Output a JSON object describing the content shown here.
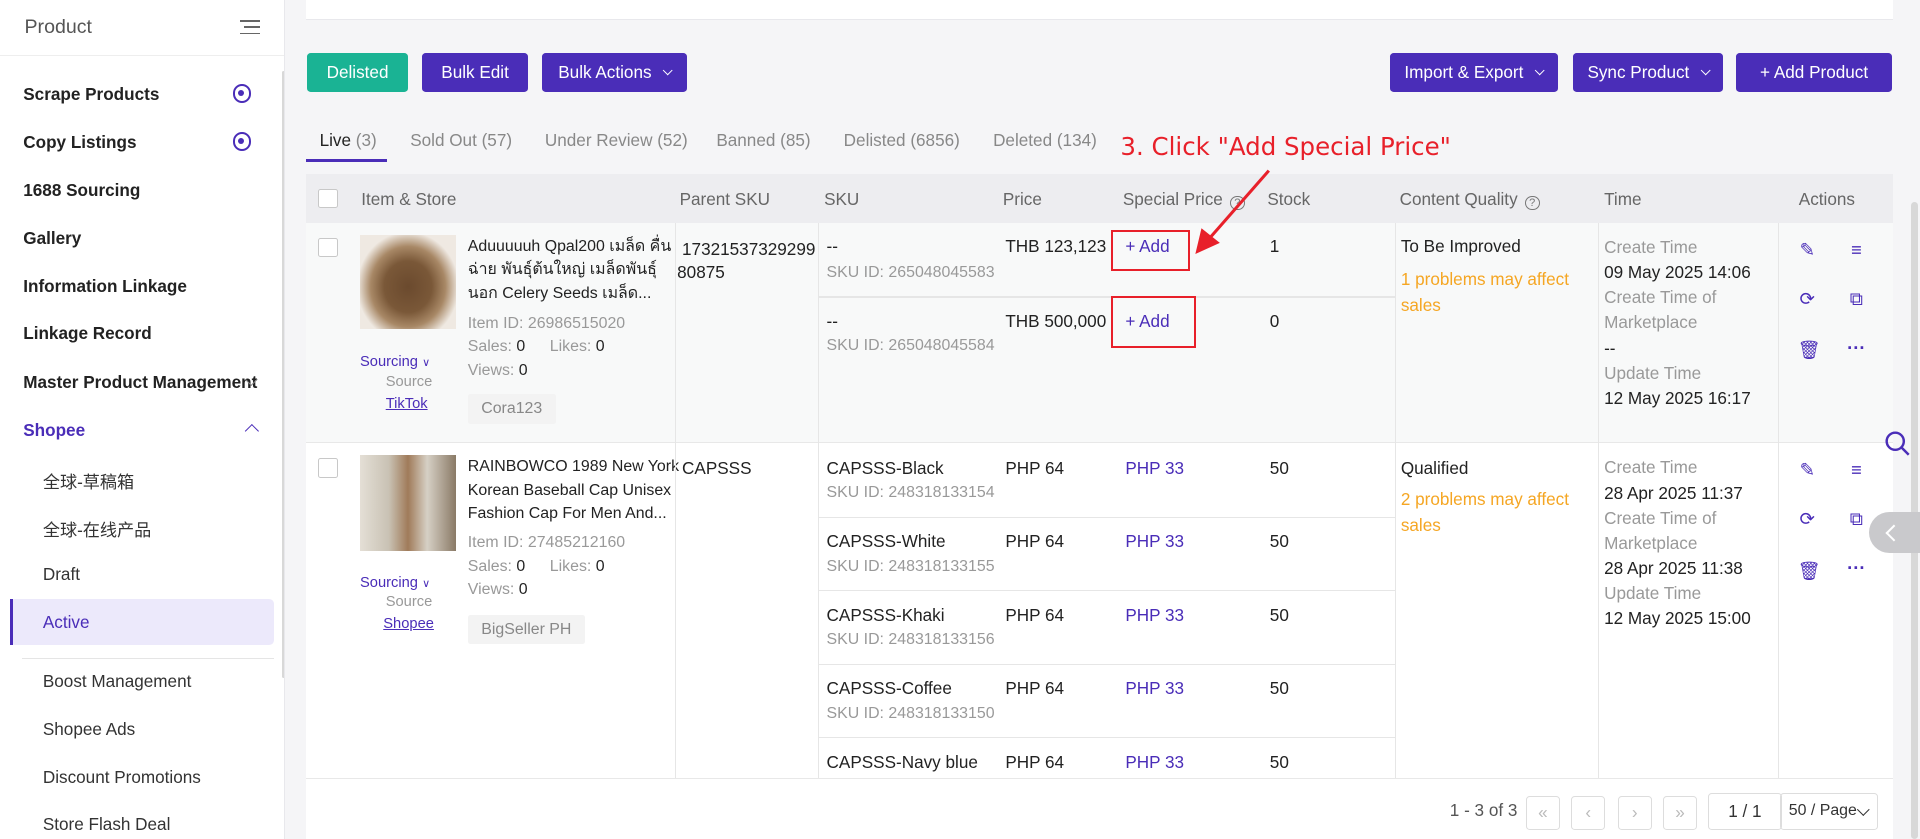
{
  "sidebar": {
    "title": "Product",
    "items": [
      {
        "label": "Scrape Products"
      },
      {
        "label": "Copy Listings"
      },
      {
        "label": "1688 Sourcing"
      },
      {
        "label": "Gallery"
      },
      {
        "label": "Information Linkage"
      },
      {
        "label": "Linkage Record"
      },
      {
        "label": "Master Product Management"
      },
      {
        "label": "Shopee"
      }
    ],
    "shopee_subitems": [
      {
        "label": "全球-草稿箱"
      },
      {
        "label": "全球-在线产品"
      },
      {
        "label": "Draft"
      },
      {
        "label": "Active"
      },
      {
        "label": "Boost Management"
      },
      {
        "label": "Shopee Ads"
      },
      {
        "label": "Discount Promotions"
      },
      {
        "label": "Store Flash Deal"
      }
    ]
  },
  "toolbar": {
    "delisted": "Delisted",
    "bulk_edit": "Bulk Edit",
    "bulk_actions": "Bulk Actions",
    "import_export": "Import & Export",
    "sync_product": "Sync Product",
    "add_product": "+ Add Product"
  },
  "tabs": [
    {
      "label": "Live",
      "count": "(3)"
    },
    {
      "label": "Sold Out",
      "count": "(57)"
    },
    {
      "label": "Under Review",
      "count": "(52)"
    },
    {
      "label": "Banned",
      "count": "(85)"
    },
    {
      "label": "Delisted",
      "count": "(6856)"
    },
    {
      "label": "Deleted",
      "count": "(134)"
    }
  ],
  "annotation": "3. Click \"Add Special Price\"",
  "table": {
    "headers": {
      "item_store": "Item & Store",
      "parent_sku": "Parent SKU",
      "sku": "SKU",
      "price": "Price",
      "special_price": "Special Price",
      "stock": "Stock",
      "content_quality": "Content Quality",
      "time": "Time",
      "actions": "Actions"
    },
    "products": [
      {
        "title_lines": [
          "Aduuuuuh Qpal200 เมล็ด คื่น",
          "ฉ่าย พันธุ์ต้นใหญ่ เมล็ดพันธุ์",
          "นอก Celery Seeds เมล็ด..."
        ],
        "item_id": "Item ID: 26986515020",
        "sales_label": "Sales:",
        "sales": "0",
        "likes_label": "Likes:",
        "likes": "0",
        "views_label": "Views:",
        "views": "0",
        "sourcing": "Sourcing",
        "source_label": "Source",
        "source": "TikTok",
        "store": "Cora123",
        "parent_sku": "17321537329299",
        "parent_sku_2": "80875",
        "quality": "To Be Improved",
        "problems_1": "1 problems may affect",
        "problems_2": "sales",
        "time": {
          "create_label": "Create Time",
          "create": "09 May 2025 14:06",
          "market_label_1": "Create Time of",
          "market_label_2": "Marketplace",
          "market": "--",
          "update_label": "Update Time",
          "update": "12 May 2025 16:17"
        },
        "variants": [
          {
            "sku": "--",
            "sku_id": "SKU ID: 265048045583",
            "price": "THB 123,123",
            "special": "+ Add",
            "stock": "1"
          },
          {
            "sku": "--",
            "sku_id": "SKU ID: 265048045584",
            "price": "THB 500,000",
            "special": "+ Add",
            "stock": "0"
          }
        ]
      },
      {
        "title_lines": [
          "RAINBOWCO 1989 New York",
          "Korean Baseball Cap Unisex",
          "Fashion Cap For Men And..."
        ],
        "item_id": "Item ID: 27485212160",
        "sales_label": "Sales:",
        "sales": "0",
        "likes_label": "Likes:",
        "likes": "0",
        "views_label": "Views:",
        "views": "0",
        "sourcing": "Sourcing",
        "source_label": "Source",
        "source": "Shopee",
        "store": "BigSeller PH",
        "parent_sku": "CAPSSS",
        "quality": "Qualified",
        "problems_1": "2 problems may affect",
        "problems_2": "sales",
        "time": {
          "create_label": "Create Time",
          "create": "28 Apr 2025 11:37",
          "market_label_1": "Create Time of",
          "market_label_2": "Marketplace",
          "market": "28 Apr 2025 11:38",
          "update_label": "Update Time",
          "update": "12 May 2025 15:00"
        },
        "variants": [
          {
            "sku": "CAPSSS-Black",
            "sku_id": "SKU ID: 248318133154",
            "price": "PHP 64",
            "special": "PHP 33",
            "stock": "50"
          },
          {
            "sku": "CAPSSS-White",
            "sku_id": "SKU ID: 248318133155",
            "price": "PHP 64",
            "special": "PHP 33",
            "stock": "50"
          },
          {
            "sku": "CAPSSS-Khaki",
            "sku_id": "SKU ID: 248318133156",
            "price": "PHP 64",
            "special": "PHP 33",
            "stock": "50"
          },
          {
            "sku": "CAPSSS-Coffee",
            "sku_id": "SKU ID: 248318133150",
            "price": "PHP 64",
            "special": "PHP 33",
            "stock": "50"
          },
          {
            "sku": "CAPSSS-Navy blue",
            "price": "PHP 64",
            "special": "PHP 33",
            "stock": "50"
          }
        ]
      }
    ]
  },
  "pagination": {
    "range": "1 - 3 of 3",
    "page": "1 / 1",
    "page_size": "50 / Page"
  },
  "colors": {
    "accent": "#4a2db8",
    "green": "#1ab394",
    "warning": "#f5a623",
    "annotation": "#e8202a"
  }
}
